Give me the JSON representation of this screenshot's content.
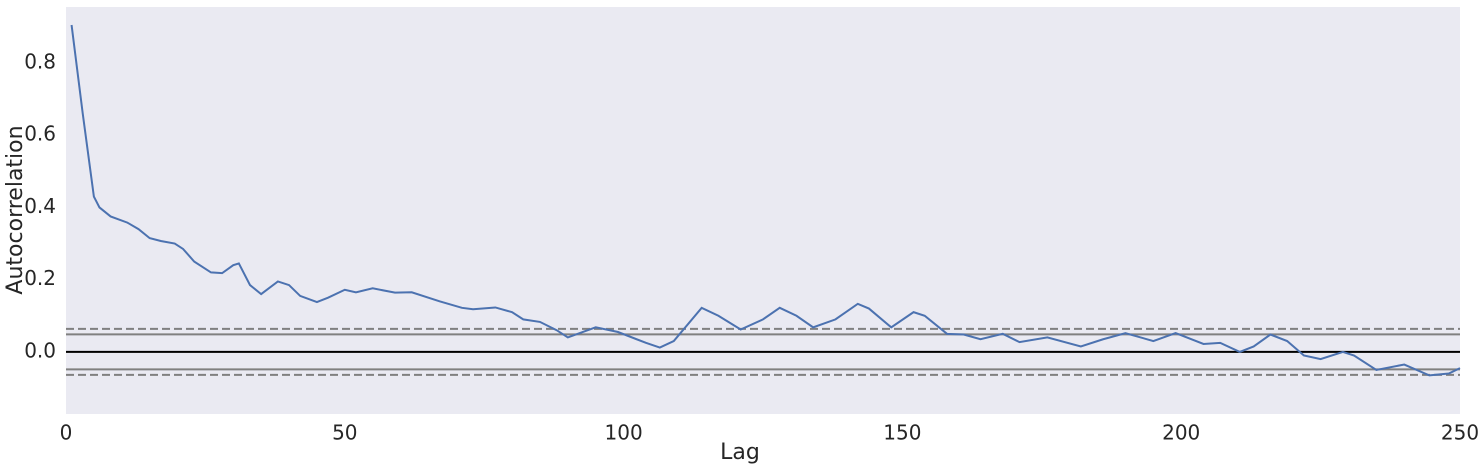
{
  "chart_data": {
    "type": "line",
    "xlabel": "Lag",
    "ylabel": "Autocorrelation",
    "x": [
      1,
      3,
      5,
      6,
      8,
      11,
      13,
      15,
      17,
      19.5,
      21,
      23,
      26,
      28,
      30,
      31,
      33,
      35,
      38,
      40,
      42,
      45,
      47,
      50,
      52,
      55,
      59,
      62,
      67,
      71,
      73,
      77,
      80,
      82,
      85,
      88,
      90,
      95,
      99,
      104,
      106.5,
      109,
      114,
      117,
      121,
      125,
      128,
      131,
      134,
      138,
      142,
      144,
      148,
      152,
      154,
      158,
      161,
      164,
      168,
      171,
      176,
      182,
      186,
      190,
      195,
      199,
      204,
      207,
      210.5,
      213,
      216,
      219,
      222,
      225,
      229,
      231,
      235,
      240,
      244.5,
      248,
      250
    ],
    "series": [
      {
        "name": "autocorrelation",
        "color": "#4c72b0",
        "values": [
          0.905,
          0.66,
          0.43,
          0.4,
          0.375,
          0.358,
          0.34,
          0.315,
          0.307,
          0.3,
          0.285,
          0.25,
          0.22,
          0.218,
          0.24,
          0.245,
          0.185,
          0.16,
          0.195,
          0.185,
          0.155,
          0.138,
          0.15,
          0.172,
          0.165,
          0.176,
          0.164,
          0.165,
          0.14,
          0.122,
          0.118,
          0.123,
          0.11,
          0.09,
          0.083,
          0.06,
          0.04,
          0.068,
          0.055,
          0.025,
          0.012,
          0.03,
          0.122,
          0.1,
          0.062,
          0.09,
          0.122,
          0.1,
          0.068,
          0.09,
          0.133,
          0.12,
          0.068,
          0.11,
          0.1,
          0.05,
          0.048,
          0.035,
          0.05,
          0.027,
          0.04,
          0.015,
          0.035,
          0.052,
          0.03,
          0.052,
          0.022,
          0.025,
          0.0,
          0.015,
          0.048,
          0.03,
          -0.01,
          -0.02,
          0.0,
          -0.01,
          -0.05,
          -0.035,
          -0.065,
          -0.06,
          -0.045
        ]
      }
    ],
    "hlines": [
      {
        "value": 0.0636,
        "color": "#808080",
        "dashed": true
      },
      {
        "value": 0.0484,
        "color": "#808080",
        "dashed": false
      },
      {
        "value": 0,
        "color": "#000000",
        "dashed": false
      },
      {
        "value": -0.0484,
        "color": "#808080",
        "dashed": false
      },
      {
        "value": -0.0636,
        "color": "#808080",
        "dashed": true
      }
    ],
    "xlim": [
      0,
      250
    ],
    "xticks": [
      0,
      50,
      100,
      150,
      200,
      250
    ],
    "ylim": [
      -0.172,
      0.955
    ],
    "yticks": [
      {
        "value": 0,
        "label": "0.0"
      },
      {
        "value": 0.2,
        "label": "0.2"
      },
      {
        "value": 0.4,
        "label": "0.4"
      },
      {
        "value": 0.6,
        "label": "0.6"
      },
      {
        "value": 0.8,
        "label": "0.8"
      }
    ],
    "background": "#eaeaf2",
    "grid": false
  }
}
